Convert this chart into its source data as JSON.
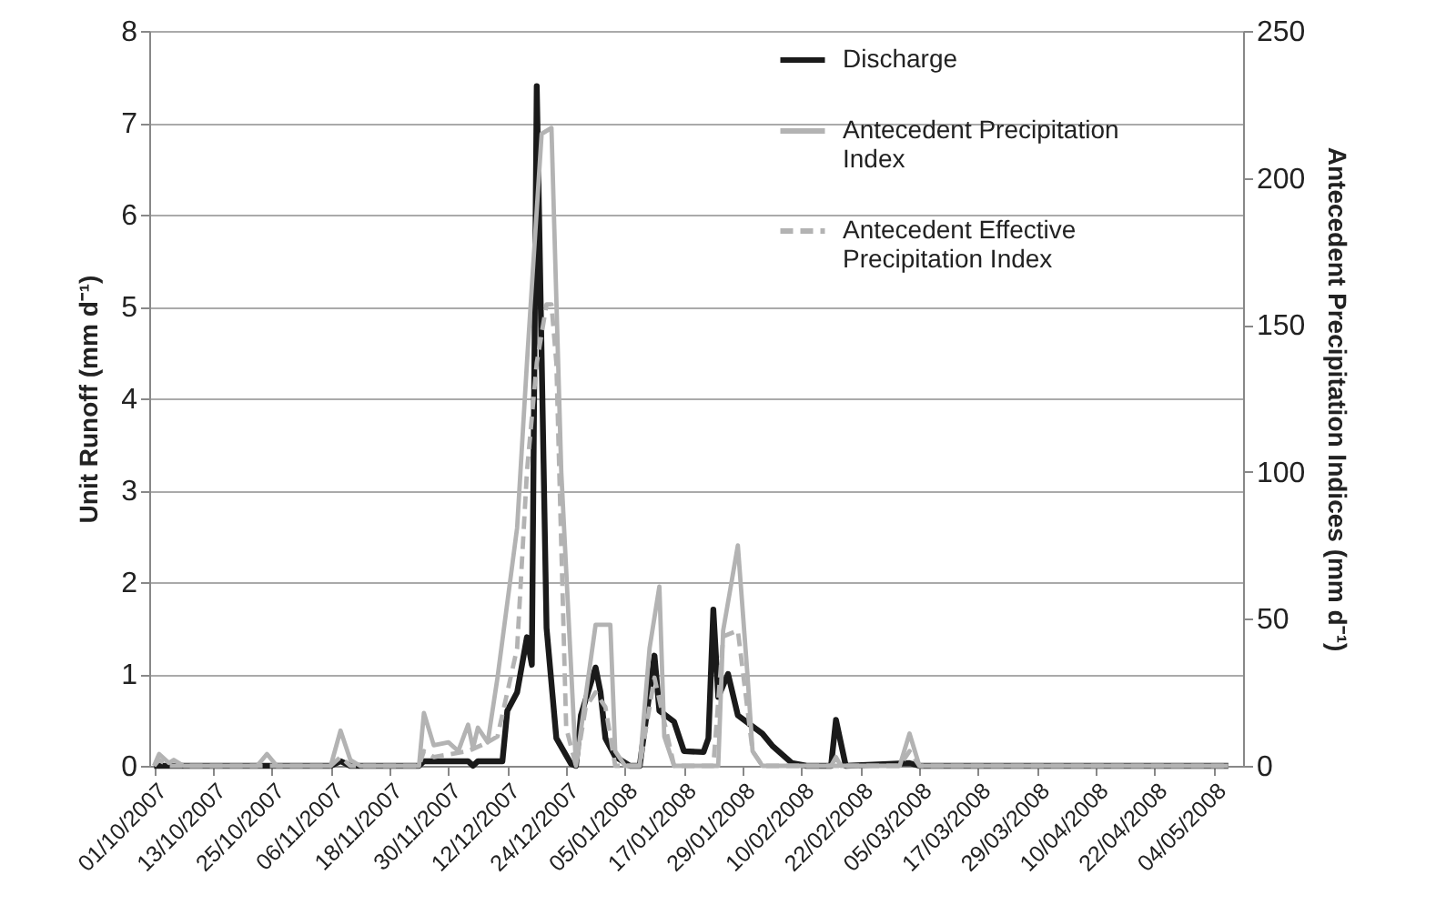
{
  "chart_data": {
    "type": "line",
    "ylabel": "Unit Runoff (mm d⁻¹)",
    "y2label": "Antecedent Precipitation Indices (mm d⁻¹)",
    "xlim": [
      "2007-09-30",
      "2008-05-10"
    ],
    "xticks": [
      {
        "value": "2007-10-01",
        "label": "01/10/2007"
      },
      {
        "value": "2007-10-13",
        "label": "13/10/2007"
      },
      {
        "value": "2007-10-25",
        "label": "25/10/2007"
      },
      {
        "value": "2007-11-06",
        "label": "06/11/2007"
      },
      {
        "value": "2007-11-18",
        "label": "18/11/2007"
      },
      {
        "value": "2007-11-30",
        "label": "30/11/2007"
      },
      {
        "value": "2007-12-12",
        "label": "12/12/2007"
      },
      {
        "value": "2007-12-24",
        "label": "24/12/2007"
      },
      {
        "value": "2008-01-05",
        "label": "05/01/2008"
      },
      {
        "value": "2008-01-17",
        "label": "17/01/2008"
      },
      {
        "value": "2008-01-29",
        "label": "29/01/2008"
      },
      {
        "value": "2008-02-10",
        "label": "10/02/2008"
      },
      {
        "value": "2008-02-22",
        "label": "22/02/2008"
      },
      {
        "value": "2008-03-05",
        "label": "05/03/2008"
      },
      {
        "value": "2008-03-17",
        "label": "17/03/2008"
      },
      {
        "value": "2008-03-29",
        "label": "29/03/2008"
      },
      {
        "value": "2008-04-10",
        "label": "10/04/2008"
      },
      {
        "value": "2008-04-22",
        "label": "22/04/2008"
      },
      {
        "value": "2008-05-04",
        "label": "04/05/2008"
      }
    ],
    "ylim": [
      0,
      8
    ],
    "yticks": [
      0,
      1,
      2,
      3,
      4,
      5,
      6,
      7,
      8
    ],
    "y2lim": [
      0,
      250
    ],
    "y2ticks": [
      0,
      50,
      100,
      150,
      200,
      250
    ],
    "grid": "y",
    "legend": "top right",
    "marker": "none",
    "series": [
      {
        "name": "Discharge",
        "color": "#1a1a1a",
        "line_style": "solid",
        "axis": "y",
        "x": [
          "2007-10-01",
          "2007-11-06",
          "2007-11-08",
          "2007-11-10",
          "2007-11-24",
          "2007-11-25",
          "2007-12-04",
          "2007-12-05",
          "2007-12-06",
          "2007-12-11",
          "2007-12-12",
          "2007-12-14",
          "2007-12-16",
          "2007-12-17",
          "2007-12-18",
          "2007-12-20",
          "2007-12-22",
          "2007-12-25",
          "2007-12-26",
          "2007-12-27",
          "2007-12-30",
          "2007-12-31",
          "2008-01-01",
          "2008-01-03",
          "2008-01-06",
          "2008-01-08",
          "2008-01-10",
          "2008-01-11",
          "2008-01-12",
          "2008-01-15",
          "2008-01-17",
          "2008-01-21",
          "2008-01-22",
          "2008-01-23",
          "2008-01-24",
          "2008-01-26",
          "2008-01-28",
          "2008-02-02",
          "2008-02-04",
          "2008-02-08",
          "2008-02-11",
          "2008-02-16",
          "2008-02-17",
          "2008-02-19",
          "2008-03-03",
          "2008-03-05",
          "2008-05-07"
        ],
        "values": [
          0,
          0,
          0.05,
          0,
          0,
          0.05,
          0.05,
          0,
          0.05,
          0.05,
          0.6,
          0.8,
          1.4,
          1.1,
          7.4,
          1.5,
          0.3,
          0.02,
          0,
          0.55,
          1.07,
          0.8,
          0.3,
          0.1,
          0,
          0,
          0.8,
          1.2,
          0.6,
          0.48,
          0.16,
          0.15,
          0.3,
          1.7,
          0.75,
          1.0,
          0.55,
          0.35,
          0.22,
          0.03,
          0,
          0,
          0.5,
          0,
          0.03,
          0,
          0
        ]
      },
      {
        "name": "Antecedent Precipitation Index",
        "color": "#b3b3b3",
        "line_style": "solid",
        "axis": "y2",
        "x": [
          "2007-10-01",
          "2007-10-02",
          "2007-10-04",
          "2007-10-05",
          "2007-10-07",
          "2007-10-22",
          "2007-10-24",
          "2007-10-26",
          "2007-11-06",
          "2007-11-08",
          "2007-11-10",
          "2007-11-12",
          "2007-11-24",
          "2007-11-25",
          "2007-11-27",
          "2007-11-30",
          "2007-12-02",
          "2007-12-04",
          "2007-12-05",
          "2007-12-06",
          "2007-12-08",
          "2007-12-10",
          "2007-12-14",
          "2007-12-16",
          "2007-12-19",
          "2007-12-21",
          "2007-12-23",
          "2007-12-26",
          "2007-12-30",
          "2008-01-02",
          "2008-01-03",
          "2008-01-05",
          "2008-01-08",
          "2008-01-10",
          "2008-01-12",
          "2008-01-13",
          "2008-01-15",
          "2008-01-24",
          "2008-01-25",
          "2008-01-28",
          "2008-01-30",
          "2008-01-31",
          "2008-02-02",
          "2008-02-16",
          "2008-02-17",
          "2008-02-18",
          "2008-03-01",
          "2008-03-03",
          "2008-03-05",
          "2008-05-07"
        ],
        "values": [
          0,
          4,
          1,
          2,
          0,
          0,
          4,
          0,
          0,
          12,
          2,
          0,
          0,
          18,
          7,
          8,
          5,
          14,
          6,
          13,
          8,
          30,
          81,
          137,
          215,
          217,
          100,
          0,
          48,
          48,
          5,
          0,
          0,
          40,
          61,
          10,
          0,
          0,
          46,
          75,
          30,
          5,
          0,
          0,
          3,
          0,
          0,
          11,
          0,
          0
        ]
      },
      {
        "name": "Antecedent Effective Precipitation Index",
        "color": "#b3b3b3",
        "line_style": "dashed",
        "axis": "y2",
        "x": [
          "2007-10-01",
          "2007-10-02",
          "2007-10-04",
          "2007-11-06",
          "2007-11-08",
          "2007-11-10",
          "2007-11-24",
          "2007-11-25",
          "2007-11-27",
          "2007-12-04",
          "2007-12-08",
          "2007-12-10",
          "2007-12-14",
          "2007-12-16",
          "2007-12-18",
          "2007-12-20",
          "2007-12-21",
          "2007-12-22",
          "2007-12-24",
          "2007-12-26",
          "2007-12-28",
          "2007-12-30",
          "2008-01-01",
          "2008-01-03",
          "2008-01-08",
          "2008-01-11",
          "2008-01-13",
          "2008-01-15",
          "2008-01-23",
          "2008-01-25",
          "2008-01-28",
          "2008-01-31",
          "2008-02-02",
          "2008-03-01",
          "2008-03-03",
          "2008-03-05",
          "2008-05-07"
        ],
        "values": [
          0,
          2,
          0,
          0,
          3,
          0,
          0,
          5,
          3,
          5,
          8,
          10,
          40,
          100,
          137,
          157,
          157,
          137,
          13,
          0,
          20,
          25,
          20,
          0,
          0,
          30,
          15,
          0,
          0,
          44,
          46,
          5,
          0,
          0,
          5,
          0,
          0
        ]
      }
    ]
  }
}
